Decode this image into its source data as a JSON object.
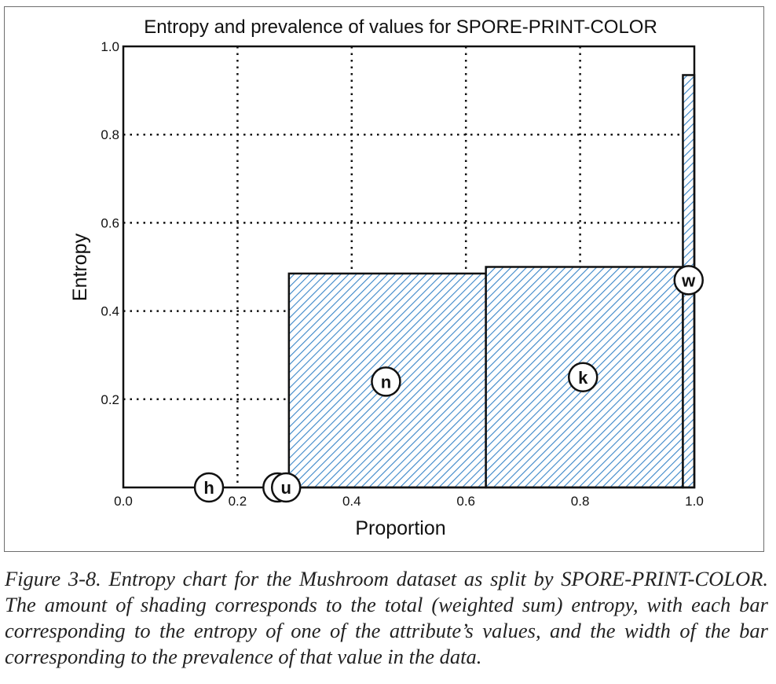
{
  "chart_data": {
    "type": "bar",
    "title": "Entropy and prevalence of values for SPORE-PRINT-COLOR",
    "xlabel": "Proportion",
    "ylabel": "Entropy",
    "xlim": [
      0,
      1
    ],
    "ylim": [
      0,
      1
    ],
    "xticks": [
      "0.0",
      "0.2",
      "0.4",
      "0.6",
      "0.8",
      "1.0"
    ],
    "yticks": [
      "0.2",
      "0.4",
      "0.6",
      "0.8",
      "1.0"
    ],
    "grid": true,
    "bars": [
      {
        "label": "h",
        "x_start": 0.0,
        "x_end": 0.2,
        "entropy": 0.0,
        "label_x": 0.15,
        "label_y": 0.0
      },
      {
        "label": "",
        "x_start": 0.2,
        "x_end": 0.27,
        "entropy": 0.0,
        "label_x": 0.27,
        "label_y": 0.0
      },
      {
        "label": "u",
        "x_start": 0.27,
        "x_end": 0.29,
        "entropy": 0.0,
        "label_x": 0.285,
        "label_y": 0.0
      },
      {
        "label": "n",
        "x_start": 0.29,
        "x_end": 0.635,
        "entropy": 0.485,
        "label_x": 0.46,
        "label_y": 0.24
      },
      {
        "label": "k",
        "x_start": 0.635,
        "x_end": 0.98,
        "entropy": 0.5,
        "label_x": 0.805,
        "label_y": 0.25
      },
      {
        "label": "w",
        "x_start": 0.98,
        "x_end": 1.0,
        "entropy": 0.935,
        "label_x": 0.99,
        "label_y": 0.47
      }
    ],
    "hatch_color": "#3a86c8"
  },
  "caption": "Figure 3-8. Entropy chart for the Mushroom dataset as split by SPORE-PRINT-COLOR. The amount of shading corresponds to the total (weighted sum) entropy, with each bar corresponding to the entropy of one of the attribute’s values, and the width of the bar corresponding to the prevalence of that value in the data."
}
